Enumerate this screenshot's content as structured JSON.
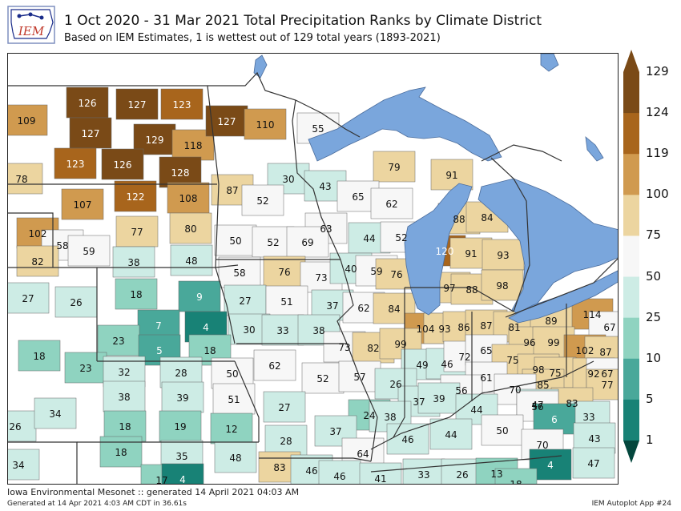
{
  "header": {
    "logo_text": "IEM",
    "title": "1 Oct 2020 - 31 Mar 2021 Total Precipitation Ranks by Climate District",
    "subtitle": "Based on IEM Estimates, 1 is wettest out of 129 total years (1893-2021)"
  },
  "footer": {
    "main": "Iowa Environmental Mesonet :: generated 14 April 2021 04:03 AM",
    "generated": "Generated at 14 Apr 2021 4:03 AM CDT in 36.61s",
    "app": "IEM Autoplot App #24"
  },
  "legend": {
    "ticks": [
      "129",
      "124",
      "119",
      "100",
      "75",
      "50",
      "25",
      "10",
      "5",
      "1"
    ],
    "colors": [
      "#7a4a17",
      "#a8651c",
      "#d09a4f",
      "#ecd5a0",
      "#f7f7f7",
      "#cdece5",
      "#8fd3c0",
      "#49a89a",
      "#188276",
      "#04473d"
    ]
  },
  "colors": {
    "water": "#7aa6dc",
    "land": "#ffffff",
    "boundary": "#333333",
    "class_0": "#7a4a17",
    "class_1": "#a8651c",
    "class_2": "#d09a4f",
    "class_3": "#ecd5a0",
    "class_4": "#f7f7f7",
    "class_5": "#cdece5",
    "class_6": "#8fd3c0",
    "class_7": "#49a89a",
    "class_8": "#188276",
    "class_9": "#04473d"
  },
  "districts": [
    {
      "rank": "109"
    },
    {
      "rank": "126"
    },
    {
      "rank": "127"
    },
    {
      "rank": "123"
    },
    {
      "rank": "127"
    },
    {
      "rank": "129"
    },
    {
      "rank": "118"
    },
    {
      "rank": "127"
    },
    {
      "rank": "110"
    },
    {
      "rank": "55"
    },
    {
      "rank": "78"
    },
    {
      "rank": "123"
    },
    {
      "rank": "126"
    },
    {
      "rank": "128"
    },
    {
      "rank": "79"
    },
    {
      "rank": "91"
    },
    {
      "rank": "30"
    },
    {
      "rank": "43"
    },
    {
      "rank": "65"
    },
    {
      "rank": "87"
    },
    {
      "rank": "52"
    },
    {
      "rank": "107"
    },
    {
      "rank": "122"
    },
    {
      "rank": "108"
    },
    {
      "rank": "62"
    },
    {
      "rank": "88"
    },
    {
      "rank": "84"
    },
    {
      "rank": "102"
    },
    {
      "rank": "77"
    },
    {
      "rank": "80"
    },
    {
      "rank": "63"
    },
    {
      "rank": "58"
    },
    {
      "rank": "59"
    },
    {
      "rank": "50"
    },
    {
      "rank": "52"
    },
    {
      "rank": "69"
    },
    {
      "rank": "44"
    },
    {
      "rank": "52"
    },
    {
      "rank": "82"
    },
    {
      "rank": "38"
    },
    {
      "rank": "48"
    },
    {
      "rank": "120"
    },
    {
      "rank": "91"
    },
    {
      "rank": "93"
    },
    {
      "rank": "58"
    },
    {
      "rank": "76"
    },
    {
      "rank": "73"
    },
    {
      "rank": "40"
    },
    {
      "rank": "59"
    },
    {
      "rank": "76"
    },
    {
      "rank": "27"
    },
    {
      "rank": "18"
    },
    {
      "rank": "97"
    },
    {
      "rank": "88"
    },
    {
      "rank": "98"
    },
    {
      "rank": "26"
    },
    {
      "rank": "9"
    },
    {
      "rank": "27"
    },
    {
      "rank": "51"
    },
    {
      "rank": "37"
    },
    {
      "rank": "62"
    },
    {
      "rank": "84"
    },
    {
      "rank": "114"
    },
    {
      "rank": "7"
    },
    {
      "rank": "4"
    },
    {
      "rank": "30"
    },
    {
      "rank": "33"
    },
    {
      "rank": "38"
    },
    {
      "rank": "104"
    },
    {
      "rank": "93"
    },
    {
      "rank": "86"
    },
    {
      "rank": "87"
    },
    {
      "rank": "81"
    },
    {
      "rank": "89"
    },
    {
      "rank": "67"
    },
    {
      "rank": "23"
    },
    {
      "rank": "5"
    },
    {
      "rank": "18"
    },
    {
      "rank": "73"
    },
    {
      "rank": "82"
    },
    {
      "rank": "99"
    },
    {
      "rank": "96"
    },
    {
      "rank": "99"
    },
    {
      "rank": "102"
    },
    {
      "rank": "87"
    },
    {
      "rank": "18"
    },
    {
      "rank": "23"
    },
    {
      "rank": "62"
    },
    {
      "rank": "49"
    },
    {
      "rank": "46"
    },
    {
      "rank": "72"
    },
    {
      "rank": "65"
    },
    {
      "rank": "75"
    },
    {
      "rank": "32"
    },
    {
      "rank": "28"
    },
    {
      "rank": "50"
    },
    {
      "rank": "52"
    },
    {
      "rank": "57"
    },
    {
      "rank": "26"
    },
    {
      "rank": "98"
    },
    {
      "rank": "75"
    },
    {
      "rank": "92"
    },
    {
      "rank": "67"
    },
    {
      "rank": "85"
    },
    {
      "rank": "77"
    },
    {
      "rank": "61"
    },
    {
      "rank": "38"
    },
    {
      "rank": "39"
    },
    {
      "rank": "51"
    },
    {
      "rank": "56"
    },
    {
      "rank": "70"
    },
    {
      "rank": "37"
    },
    {
      "rank": "39"
    },
    {
      "rank": "83"
    },
    {
      "rank": "47"
    },
    {
      "rank": "27"
    },
    {
      "rank": "24"
    },
    {
      "rank": "38"
    },
    {
      "rank": "44"
    },
    {
      "rank": "56"
    },
    {
      "rank": "33"
    },
    {
      "rank": "26"
    },
    {
      "rank": "34"
    },
    {
      "rank": "18"
    },
    {
      "rank": "19"
    },
    {
      "rank": "12"
    },
    {
      "rank": "28"
    },
    {
      "rank": "37"
    },
    {
      "rank": "46"
    },
    {
      "rank": "44"
    },
    {
      "rank": "50"
    },
    {
      "rank": "6"
    },
    {
      "rank": "43"
    },
    {
      "rank": "70"
    },
    {
      "rank": "34"
    },
    {
      "rank": "18"
    },
    {
      "rank": "35"
    },
    {
      "rank": "48"
    },
    {
      "rank": "83"
    },
    {
      "rank": "46"
    },
    {
      "rank": "64"
    },
    {
      "rank": "46"
    },
    {
      "rank": "41"
    },
    {
      "rank": "33"
    },
    {
      "rank": "26"
    },
    {
      "rank": "13"
    },
    {
      "rank": "4"
    },
    {
      "rank": "47"
    },
    {
      "rank": "17"
    },
    {
      "rank": "18"
    },
    {
      "rank": "4"
    }
  ]
}
